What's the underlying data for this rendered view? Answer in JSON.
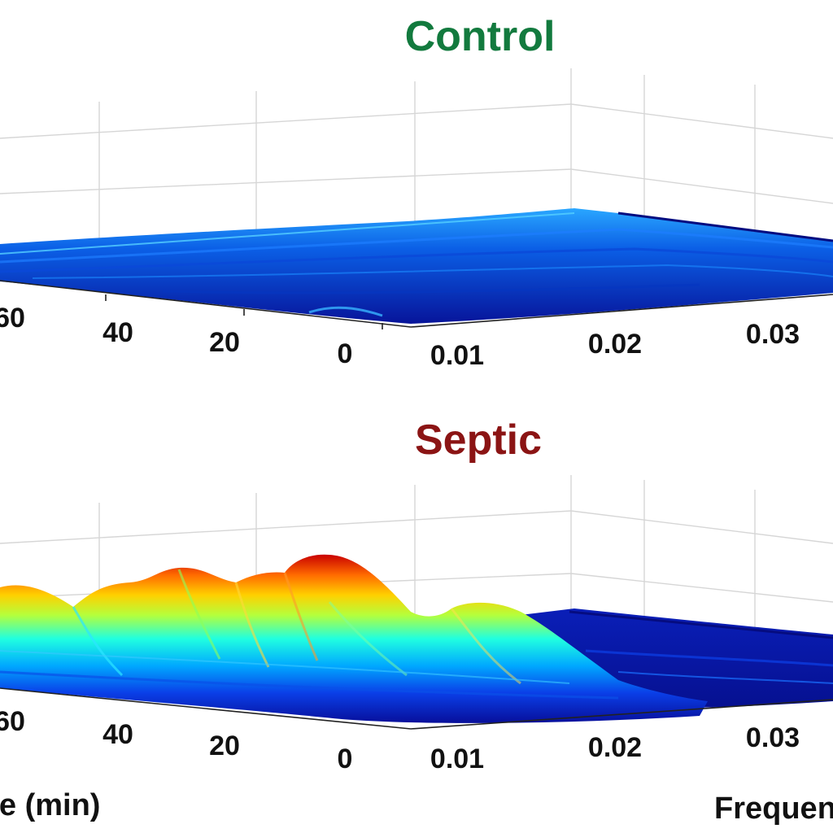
{
  "chart_data": [
    {
      "type": "area",
      "panel": "control",
      "title": "Control",
      "title_color": "#127a3e",
      "xlabel": "Time (min)",
      "ylabel": "Frequency",
      "time_ticks": [
        "60",
        "40",
        "20",
        "0"
      ],
      "freq_ticks": [
        "0.01",
        "0.02",
        "0.03"
      ],
      "grid": true,
      "colormap": "jet",
      "surface_profile": {
        "time": [
          70,
          60,
          50,
          40,
          30,
          20,
          10,
          0
        ],
        "amplitude": [
          0.1,
          0.12,
          0.11,
          0.1,
          0.12,
          0.11,
          0.1,
          0.12
        ]
      }
    },
    {
      "type": "area",
      "panel": "septic",
      "title": "Septic",
      "title_color": "#8b1414",
      "xlabel": "Time (min)",
      "ylabel": "Frequency",
      "time_ticks": [
        "60",
        "40",
        "20",
        "0"
      ],
      "freq_ticks": [
        "0.01",
        "0.02",
        "0.03"
      ],
      "grid": true,
      "colormap": "jet",
      "surface_profile": {
        "time": [
          70,
          63,
          56,
          48,
          40,
          33,
          26,
          20,
          14,
          8,
          2
        ],
        "amplitude": [
          0.45,
          0.55,
          0.35,
          0.6,
          0.7,
          0.8,
          0.78,
          1.0,
          0.72,
          0.45,
          0.2
        ]
      },
      "secondary_peak": {
        "frequency": 0.02,
        "amplitude": 0.7
      }
    }
  ],
  "axis_labels": {
    "time": "Time (min)",
    "frequency": "Frequency"
  }
}
